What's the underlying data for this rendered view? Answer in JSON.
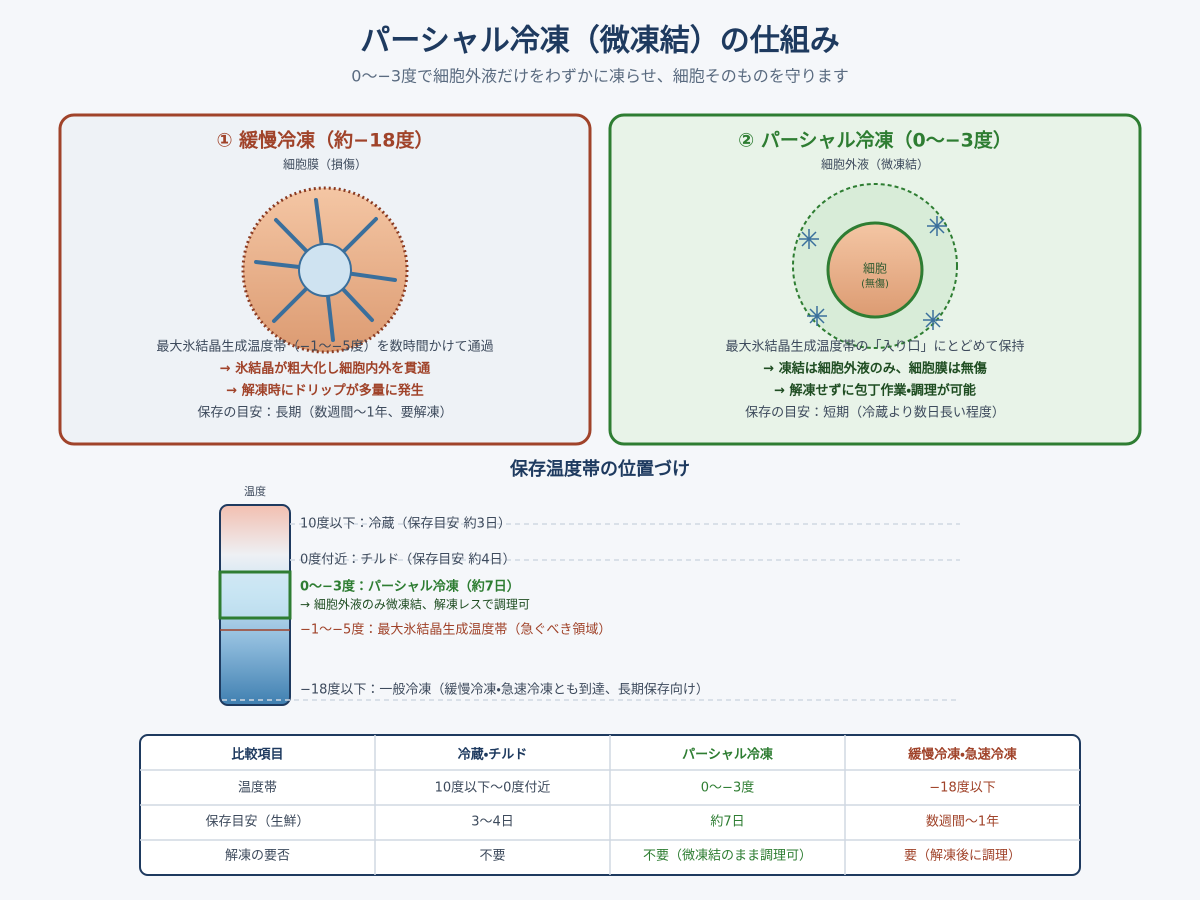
{
  "header": {
    "title": "パーシャル冷凍（微凍結）の仕組み",
    "subtitle": "0〜−3度で細胞外液だけをわずかに凍らせ、細胞そのものを守ります"
  },
  "panels": [
    {
      "title": "① 緩慢冷凍（約−18度）",
      "label": "細胞膜（損傷）",
      "lines": [
        "最大氷結晶生成温度帯（−1〜−5度）を数時間かけて通過",
        "→ 氷結晶が粗大化し細胞内外を貫通",
        "→ 解凍時にドリップが多量に発生",
        "保存の目安：長期（数週間〜1年、要解凍）"
      ]
    },
    {
      "title": "② パーシャル冷凍（0〜−3度）",
      "label": "細胞外液（微凍結）",
      "cell_label": "細胞",
      "cell_sub": "(無傷)",
      "lines": [
        "最大氷結晶生成温度帯の「入り口」にとどめて保持",
        "→ 凍結は細胞外液のみ、細胞膜は無傷",
        "→ 解凍せずに包丁作業・調理が可能",
        "保存の目安：短期（冷蔵より数日長い程度）"
      ]
    }
  ],
  "scale": {
    "title": "保存温度帯の位置づけ",
    "axis_label": "温度",
    "bands": [
      "10度以下：冷蔵（保存目安 約3日）",
      "0度付近：チルド（保存目安 約4日）",
      "0〜−3度：パーシャル冷凍（約7日）",
      "→ 細胞外液のみ微凍結、解凍レスで調理可",
      "−1〜−5度：最大氷結晶生成温度帯（急ぐべき領域）",
      "−18度以下：一般冷凍（緩慢冷凍・急速冷凍とも到達、長期保存向け）"
    ]
  },
  "table": {
    "headers": [
      "比較項目",
      "冷蔵・チルド",
      "パーシャル冷凍",
      "緩慢冷凍・急速冷凍"
    ],
    "rows": [
      [
        "温度帯",
        "10度以下〜0度付近",
        "0〜−3度",
        "−18度以下"
      ],
      [
        "保存目安（生鮮）",
        "3〜4日",
        "約7日",
        "数週間〜1年"
      ],
      [
        "解凍の要否",
        "不要",
        "不要（微凍結のまま調理可）",
        "要（解凍後に調理）"
      ]
    ]
  }
}
